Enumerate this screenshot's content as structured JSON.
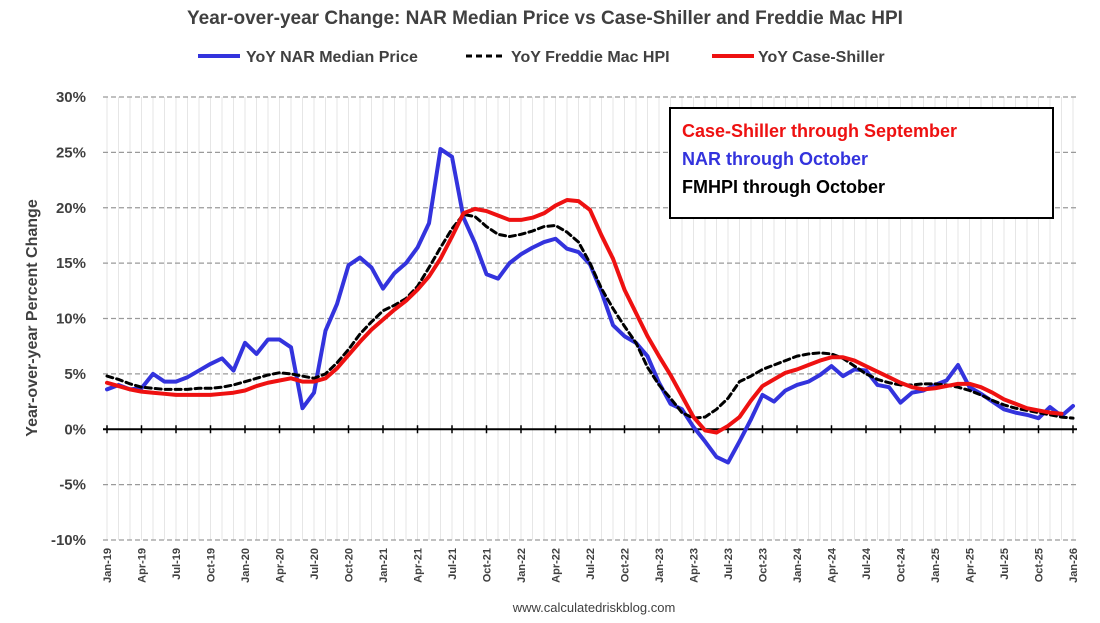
{
  "chart_data": {
    "type": "line",
    "title": "Year-over-year Change: NAR Median Price vs Case-Shiller and Freddie Mac HPI",
    "ylabel": "Year-over-year Percent Change",
    "xlabel": "",
    "source": "www.calculatedriskblog.com",
    "ylim": [
      -10,
      30
    ],
    "ytick_values": [
      -10,
      -5,
      0,
      5,
      10,
      15,
      20,
      25,
      30
    ],
    "ytick_labels": [
      "-10%",
      "-5%",
      "0%",
      "5%",
      "10%",
      "15%",
      "20%",
      "25%",
      "30%"
    ],
    "xtick_labels": [
      "Jan-19",
      "Apr-19",
      "Jul-19",
      "Oct-19",
      "Jan-20",
      "Apr-20",
      "Jul-20",
      "Oct-20",
      "Jan-21",
      "Apr-21",
      "Jul-21",
      "Oct-21",
      "Jan-22",
      "Apr-22",
      "Jul-22",
      "Oct-22",
      "Jan-23",
      "Apr-23",
      "Jul-23",
      "Oct-23",
      "Jan-24",
      "Apr-24",
      "Jul-24",
      "Oct-24",
      "Jan-25",
      "Apr-25",
      "Jul-25",
      "Oct-25",
      "Jan-26"
    ],
    "x_start": "Jan-19",
    "x_end": "Jan-26",
    "grid": true,
    "legend_position": "top",
    "series": [
      {
        "name": "YoY NAR Median Price",
        "color": "#3333dd",
        "dash": "solid",
        "values": [
          3.6,
          4.0,
          3.6,
          3.7,
          5.0,
          4.3,
          4.3,
          4.7,
          5.3,
          5.9,
          6.4,
          5.3,
          7.8,
          6.8,
          8.1,
          8.1,
          7.4,
          1.9,
          3.3,
          8.9,
          11.3,
          14.8,
          15.5,
          14.6,
          12.7,
          14.1,
          15.0,
          16.4,
          18.6,
          25.3,
          24.6,
          19.1,
          16.8,
          14.0,
          13.6,
          15.0,
          15.8,
          16.4,
          16.9,
          17.2,
          16.3,
          16.0,
          14.9,
          12.4,
          9.4,
          8.4,
          7.8,
          6.6,
          4.2,
          2.3,
          1.8,
          0.2,
          -1.1,
          -2.5,
          -3.0,
          -1.1,
          0.9,
          3.1,
          2.5,
          3.5,
          4.0,
          4.3,
          4.9,
          5.7,
          4.8,
          5.4,
          5.3,
          4.0,
          3.8,
          2.4,
          3.3,
          3.5,
          4.0,
          4.4,
          5.8,
          3.8,
          3.2,
          2.5,
          1.8,
          1.5,
          1.3,
          1.0,
          2.0,
          1.2,
          2.1
        ]
      },
      {
        "name": "YoY Freddie Mac HPI",
        "color": "#000000",
        "dash": "dashed",
        "values": [
          4.8,
          4.5,
          4.1,
          3.8,
          3.7,
          3.6,
          3.6,
          3.6,
          3.7,
          3.7,
          3.8,
          4.0,
          4.3,
          4.6,
          4.9,
          5.1,
          5.0,
          4.8,
          4.6,
          5.0,
          6.0,
          7.2,
          8.6,
          9.7,
          10.7,
          11.2,
          11.8,
          12.9,
          14.6,
          16.4,
          18.1,
          19.4,
          19.2,
          18.3,
          17.6,
          17.4,
          17.6,
          17.9,
          18.3,
          18.4,
          17.8,
          16.9,
          15.0,
          12.7,
          10.9,
          9.3,
          7.8,
          5.6,
          4.0,
          2.8,
          1.5,
          1.0,
          1.1,
          1.8,
          2.8,
          4.3,
          4.8,
          5.4,
          5.8,
          6.2,
          6.6,
          6.8,
          6.9,
          6.8,
          6.4,
          5.7,
          5.0,
          4.5,
          4.2,
          4.0,
          4.0,
          4.1,
          4.1,
          4.0,
          3.8,
          3.5,
          3.1,
          2.6,
          2.2,
          1.9,
          1.7,
          1.5,
          1.3,
          1.1,
          1.0
        ]
      },
      {
        "name": "YoY Case-Shiller",
        "color": "#ee1111",
        "dash": "solid",
        "values": [
          4.2,
          3.9,
          3.6,
          3.4,
          3.3,
          3.2,
          3.1,
          3.1,
          3.1,
          3.1,
          3.2,
          3.3,
          3.5,
          3.9,
          4.2,
          4.4,
          4.6,
          4.3,
          4.3,
          4.6,
          5.5,
          6.7,
          7.9,
          9.0,
          9.9,
          10.8,
          11.6,
          12.6,
          13.8,
          15.4,
          17.4,
          19.5,
          19.9,
          19.7,
          19.3,
          18.9,
          18.9,
          19.1,
          19.5,
          20.2,
          20.7,
          20.6,
          19.8,
          17.5,
          15.4,
          12.6,
          10.5,
          8.4,
          6.6,
          4.9,
          3.0,
          1.1,
          -0.1,
          -0.3,
          0.3,
          1.1,
          2.6,
          3.9,
          4.5,
          5.1,
          5.4,
          5.8,
          6.2,
          6.5,
          6.5,
          6.2,
          5.7,
          5.2,
          4.7,
          4.2,
          3.8,
          3.6,
          3.7,
          3.9,
          4.1,
          4.1,
          3.8,
          3.3,
          2.7,
          2.3,
          1.9,
          1.7,
          1.5,
          1.4
        ]
      }
    ],
    "annotation_box": {
      "lines": [
        {
          "text": "Case-Shiller through September",
          "color": "#ee1111"
        },
        {
          "text": "NAR through October",
          "color": "#3333dd"
        },
        {
          "text": "FMHPI through October",
          "color": "#000000"
        }
      ]
    }
  }
}
